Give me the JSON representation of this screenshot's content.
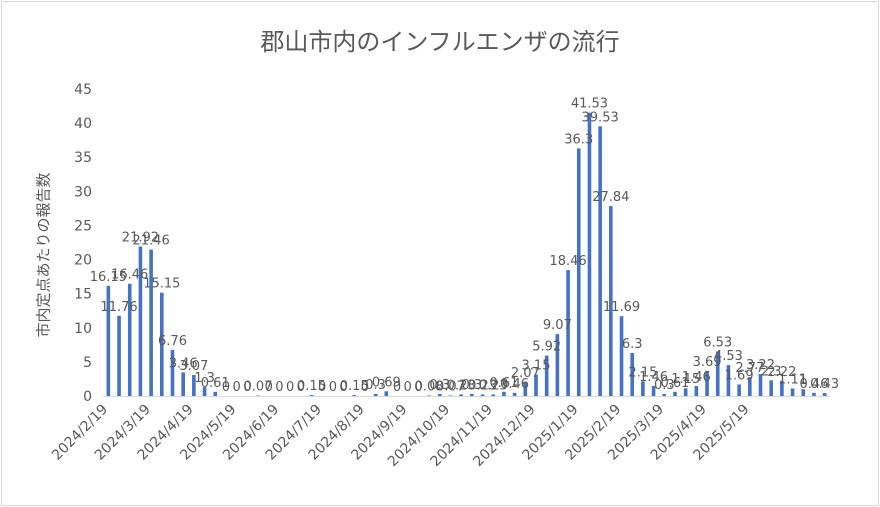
{
  "chart_data": {
    "type": "bar",
    "title": "郡山市内のインフルエンザの流行",
    "xlabel": "",
    "ylabel": "市内定点あたりの報告数",
    "ylim": [
      0,
      45
    ],
    "yticks": [
      "0",
      "5",
      "10",
      "15",
      "20",
      "25",
      "30",
      "35",
      "40",
      "45"
    ],
    "xtick_labels": [
      "2024/2/19",
      "2024/3/19",
      "2024/4/19",
      "2024/5/19",
      "2024/6/19",
      "2024/7/19",
      "2024/8/19",
      "2024/9/19",
      "2024/10/19",
      "2024/11/19",
      "2024/12/19",
      "2025/1/19",
      "2025/2/19",
      "2025/3/19",
      "2025/4/19",
      "2025/5/19"
    ],
    "grid": false,
    "legend": "none",
    "bar_color": "#4472c4",
    "values": [
      16.15,
      11.76,
      16.46,
      21.92,
      21.46,
      15.15,
      6.76,
      3.46,
      3.07,
      1.3,
      0.61,
      0.0,
      0.0,
      0.0,
      0.07,
      0.0,
      0.0,
      0.0,
      0.0,
      0.15,
      0.0,
      0.0,
      0.0,
      0.15,
      0.0,
      0.3,
      0.69,
      0.0,
      0.0,
      0.0,
      0.08,
      0.3,
      0.07,
      0.23,
      0.3,
      0.23,
      0.23,
      0.61,
      0.46,
      2.07,
      3.15,
      5.92,
      9.07,
      18.46,
      36.3,
      41.53,
      39.53,
      27.84,
      11.69,
      6.3,
      2.15,
      1.46,
      0.3,
      0.61,
      1.15,
      1.46,
      3.69,
      6.53,
      4.53,
      1.69,
      2.77,
      3.22,
      2.3,
      2.22,
      1.11,
      1.0,
      0.46,
      0.43
    ],
    "labels": [
      "16.15",
      "11.76",
      "16.46",
      "21.92",
      "21.46",
      "15.15",
      "6.76",
      "3.46",
      "3.07",
      "1.3",
      "0.61",
      "0",
      "0",
      "0",
      "0.07",
      "0",
      "0",
      "0",
      "0",
      "0.15",
      "0",
      "0",
      "0",
      "0.15",
      "0",
      "0.3",
      "0.69",
      "0",
      "0",
      "0",
      "0.08",
      "0.3",
      "0.07",
      "0.23",
      "0.3",
      "0.23",
      "0.23",
      "0.61",
      "0.46",
      "2.07",
      "3.15",
      "5.92",
      "9.07",
      "18.46",
      "36.3",
      "41.53",
      "39.53",
      "27.84",
      "11.69",
      "6.3",
      "2.15",
      "1.46",
      "0.3",
      "0.61",
      "1.15",
      "1.46",
      "3.69",
      "6.53",
      "4.53",
      "1.69",
      "2.77",
      "3.22",
      "2.3",
      "2.22",
      "1.11",
      "1",
      "0.46",
      "0.43"
    ]
  }
}
